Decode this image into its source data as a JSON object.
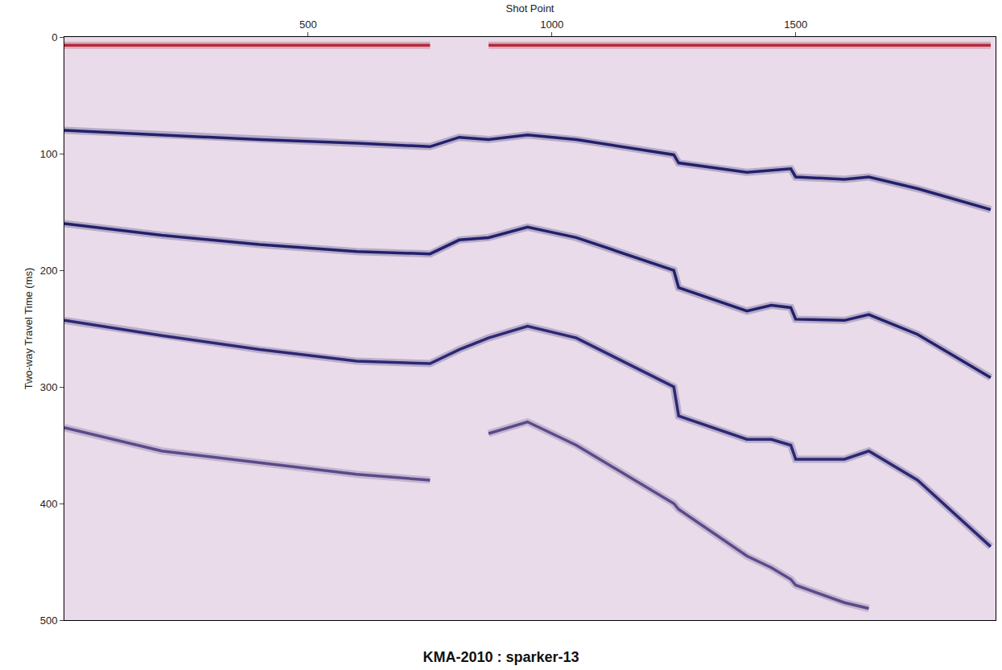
{
  "chart_data": {
    "type": "line",
    "title": "KMA-2010 : sparker-13",
    "x_label": "Shot Point",
    "y_label": "Two-way Travel Time (ms)",
    "x": [
      0,
      200,
      400,
      600,
      750,
      810,
      870,
      950,
      1050,
      1250,
      1260,
      1400,
      1450,
      1490,
      1500,
      1600,
      1650,
      1750,
      1900
    ],
    "series": [
      {
        "color": "#b8283c",
        "values": [
          7,
          7,
          7,
          7,
          7,
          null,
          7,
          7,
          7,
          7,
          7,
          7,
          7,
          7,
          7,
          7,
          7,
          7,
          7
        ]
      },
      {
        "color": "#23206b",
        "values": [
          80,
          84,
          88,
          91,
          94,
          86,
          88,
          84,
          88,
          101,
          108,
          116,
          114,
          113,
          120,
          122,
          120,
          130,
          148
        ]
      },
      {
        "color": "#23206b",
        "values": [
          160,
          170,
          178,
          184,
          186,
          174,
          172,
          163,
          172,
          200,
          215,
          235,
          230,
          232,
          242,
          243,
          238,
          255,
          292
        ]
      },
      {
        "color": "#2c2874",
        "values": [
          243,
          256,
          268,
          278,
          280,
          268,
          258,
          248,
          258,
          300,
          325,
          345,
          345,
          350,
          362,
          362,
          355,
          380,
          437
        ]
      },
      {
        "color": "#5a4a8a",
        "values": [
          335,
          355,
          365,
          375,
          380,
          null,
          340,
          330,
          350,
          400,
          405,
          445,
          455,
          465,
          470,
          485,
          490,
          null,
          null
        ]
      }
    ],
    "xlim": [
      0,
      1910
    ],
    "xticks": [
      500,
      1000,
      1500
    ],
    "ylim": [
      500,
      0
    ],
    "yticks": [
      0,
      100,
      200,
      300,
      400,
      500
    ],
    "grid": false
  }
}
